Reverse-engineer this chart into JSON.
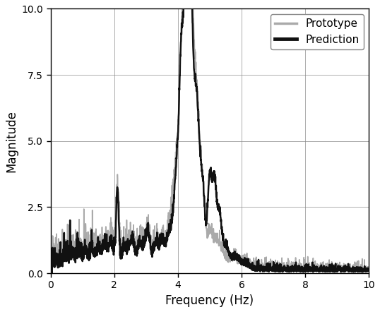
{
  "title": "",
  "xlabel": "Frequency (Hz)",
  "ylabel": "Magnitude",
  "xlim": [
    0,
    10
  ],
  "ylim": [
    0,
    10
  ],
  "yticks": [
    0,
    2.5,
    5,
    7.5,
    10
  ],
  "xticks": [
    0,
    2,
    4,
    6,
    8,
    10
  ],
  "prototype_color": "#aaaaaa",
  "prediction_color": "#111111",
  "prototype_linewidth": 1.2,
  "prediction_linewidth": 1.8,
  "legend_labels": [
    "Prototype",
    "Prediction"
  ],
  "figsize": [
    5.38,
    4.42
  ],
  "dpi": 100
}
